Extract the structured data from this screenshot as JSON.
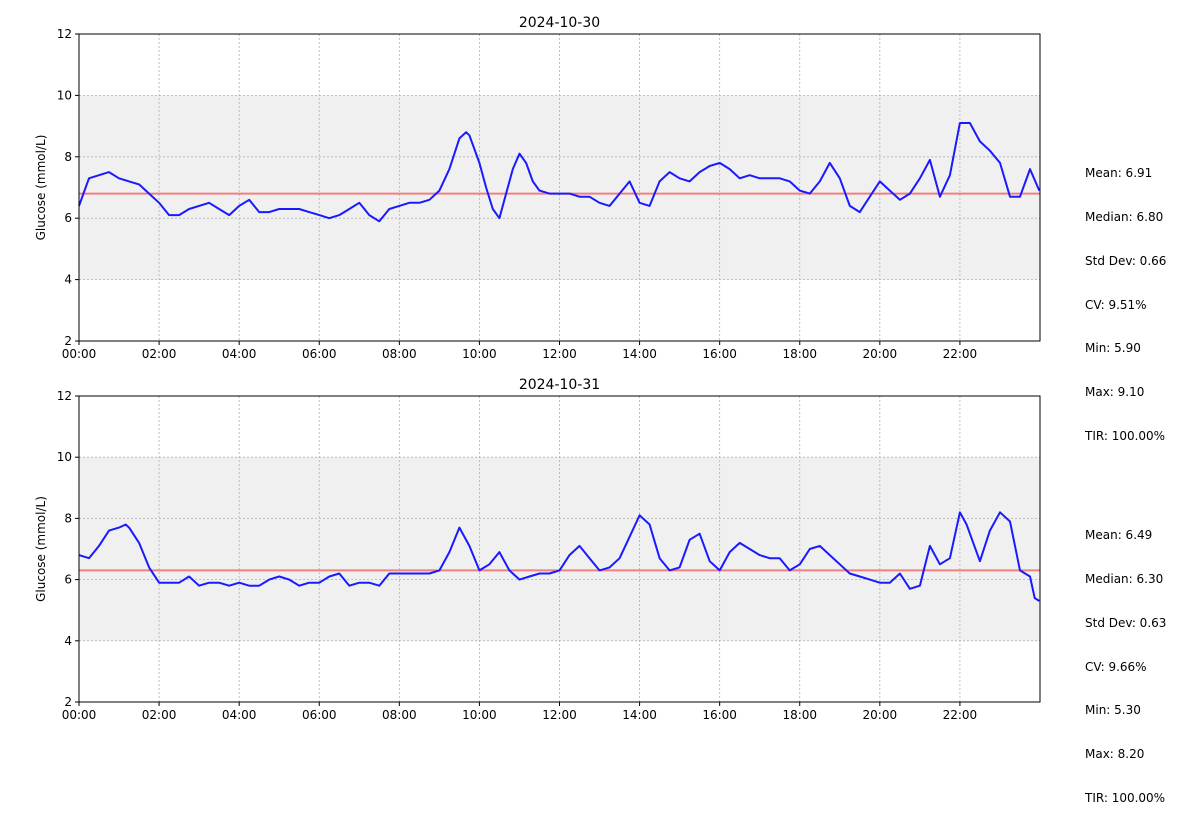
{
  "chart_data": [
    {
      "type": "line",
      "title": "2024-10-30",
      "ylabel": "Glucose (mmol/L)",
      "xlabel": "",
      "xlim": [
        "00:00",
        "24:00"
      ],
      "ylim": [
        2,
        12
      ],
      "yticks": [
        "2",
        "4",
        "6",
        "8",
        "10",
        "12"
      ],
      "xticks": [
        "00:00",
        "02:00",
        "04:00",
        "06:00",
        "08:00",
        "10:00",
        "12:00",
        "14:00",
        "16:00",
        "18:00",
        "20:00",
        "22:00"
      ],
      "grid": true,
      "target_range": [
        4,
        10
      ],
      "reference_line": 6.8,
      "colors": {
        "line": "#1a1aff",
        "reference": "#f08080",
        "band": "#f0f0f0"
      },
      "series": [
        {
          "x": [
            "00:00",
            "00:15",
            "00:30",
            "00:45",
            "01:00",
            "01:15",
            "01:30",
            "01:45",
            "02:00",
            "02:15",
            "02:30",
            "02:45",
            "03:00",
            "03:15",
            "03:30",
            "03:45",
            "04:00",
            "04:15",
            "04:30",
            "04:45",
            "05:00",
            "05:15",
            "05:30",
            "05:45",
            "06:00",
            "06:15",
            "06:30",
            "06:45",
            "07:00",
            "07:15",
            "07:30",
            "07:45",
            "08:00",
            "08:15",
            "08:30",
            "08:45",
            "09:00",
            "09:15",
            "09:30",
            "09:40",
            "09:45",
            "10:00",
            "10:10",
            "10:20",
            "10:30",
            "10:40",
            "10:50",
            "11:00",
            "11:10",
            "11:20",
            "11:30",
            "11:45",
            "12:00",
            "12:15",
            "12:30",
            "12:45",
            "13:00",
            "13:15",
            "13:30",
            "13:45",
            "14:00",
            "14:15",
            "14:30",
            "14:45",
            "15:00",
            "15:15",
            "15:30",
            "15:45",
            "16:00",
            "16:15",
            "16:30",
            "16:45",
            "17:00",
            "17:15",
            "17:30",
            "17:45",
            "18:00",
            "18:15",
            "18:30",
            "18:45",
            "19:00",
            "19:15",
            "19:30",
            "19:45",
            "20:00",
            "20:15",
            "20:30",
            "20:45",
            "21:00",
            "21:15",
            "21:30",
            "21:45",
            "22:00",
            "22:15",
            "22:30",
            "22:45",
            "23:00",
            "23:15",
            "23:30",
            "23:45",
            "23:59"
          ],
          "y": [
            6.4,
            7.3,
            7.4,
            7.5,
            7.3,
            7.2,
            7.1,
            6.8,
            6.5,
            6.1,
            6.1,
            6.3,
            6.4,
            6.5,
            6.3,
            6.1,
            6.4,
            6.6,
            6.2,
            6.2,
            6.3,
            6.3,
            6.3,
            6.2,
            6.1,
            6.0,
            6.1,
            6.3,
            6.5,
            6.1,
            5.9,
            6.3,
            6.4,
            6.5,
            6.5,
            6.6,
            6.9,
            7.6,
            8.6,
            8.8,
            8.7,
            7.8,
            7.0,
            6.3,
            6.0,
            6.8,
            7.6,
            8.1,
            7.8,
            7.2,
            6.9,
            6.8,
            6.8,
            6.8,
            6.7,
            6.7,
            6.5,
            6.4,
            6.8,
            7.2,
            6.5,
            6.4,
            7.2,
            7.5,
            7.3,
            7.2,
            7.5,
            7.7,
            7.8,
            7.6,
            7.3,
            7.4,
            7.3,
            7.3,
            7.3,
            7.2,
            6.9,
            6.8,
            7.2,
            7.8,
            7.3,
            6.4,
            6.2,
            6.7,
            7.2,
            6.9,
            6.6,
            6.8,
            7.3,
            7.9,
            6.7,
            7.4,
            9.1,
            9.1,
            8.5,
            8.2,
            7.8,
            6.7,
            6.7,
            7.6,
            6.9
          ]
        }
      ],
      "stats": [
        "Mean: 6.91",
        "Median: 6.80",
        "Std Dev: 0.66",
        "CV: 9.51%",
        "Min: 5.90",
        "Max: 9.10",
        "TIR: 100.00%"
      ]
    },
    {
      "type": "line",
      "title": "2024-10-31",
      "ylabel": "Glucose (mmol/L)",
      "xlabel": "",
      "xlim": [
        "00:00",
        "24:00"
      ],
      "ylim": [
        2,
        12
      ],
      "yticks": [
        "2",
        "4",
        "6",
        "8",
        "10",
        "12"
      ],
      "xticks": [
        "00:00",
        "02:00",
        "04:00",
        "06:00",
        "08:00",
        "10:00",
        "12:00",
        "14:00",
        "16:00",
        "18:00",
        "20:00",
        "22:00"
      ],
      "grid": true,
      "target_range": [
        4,
        10
      ],
      "reference_line": 6.3,
      "colors": {
        "line": "#1a1aff",
        "reference": "#f08080",
        "band": "#f0f0f0"
      },
      "series": [
        {
          "x": [
            "00:00",
            "00:15",
            "00:30",
            "00:45",
            "01:00",
            "01:10",
            "01:15",
            "01:30",
            "01:45",
            "02:00",
            "02:15",
            "02:30",
            "02:45",
            "03:00",
            "03:15",
            "03:30",
            "03:45",
            "04:00",
            "04:15",
            "04:30",
            "04:45",
            "05:00",
            "05:15",
            "05:30",
            "05:45",
            "06:00",
            "06:15",
            "06:30",
            "06:45",
            "07:00",
            "07:15",
            "07:30",
            "07:45",
            "08:00",
            "08:15",
            "08:30",
            "08:45",
            "09:00",
            "09:15",
            "09:30",
            "09:45",
            "10:00",
            "10:15",
            "10:30",
            "10:45",
            "11:00",
            "11:15",
            "11:30",
            "11:45",
            "12:00",
            "12:15",
            "12:30",
            "12:45",
            "13:00",
            "13:15",
            "13:30",
            "13:45",
            "14:00",
            "14:15",
            "14:30",
            "14:45",
            "15:00",
            "15:15",
            "15:30",
            "15:45",
            "16:00",
            "16:15",
            "16:30",
            "16:45",
            "17:00",
            "17:15",
            "17:30",
            "17:45",
            "18:00",
            "18:15",
            "18:30",
            "18:45",
            "19:00",
            "19:15",
            "19:30",
            "19:45",
            "20:00",
            "20:15",
            "20:30",
            "20:45",
            "21:00",
            "21:15",
            "21:30",
            "21:45",
            "22:00",
            "22:10",
            "22:15",
            "22:30",
            "22:45",
            "23:00",
            "23:15",
            "23:30",
            "23:45",
            "23:52",
            "23:59"
          ],
          "y": [
            6.8,
            6.7,
            7.1,
            7.6,
            7.7,
            7.8,
            7.7,
            7.2,
            6.4,
            5.9,
            5.9,
            5.9,
            6.1,
            5.8,
            5.9,
            5.9,
            5.8,
            5.9,
            5.8,
            5.8,
            6.0,
            6.1,
            6.0,
            5.8,
            5.9,
            5.9,
            6.1,
            6.2,
            5.8,
            5.9,
            5.9,
            5.8,
            6.2,
            6.2,
            6.2,
            6.2,
            6.2,
            6.3,
            6.9,
            7.7,
            7.1,
            6.3,
            6.5,
            6.9,
            6.3,
            6.0,
            6.1,
            6.2,
            6.2,
            6.3,
            6.8,
            7.1,
            6.7,
            6.3,
            6.4,
            6.7,
            7.4,
            8.1,
            7.8,
            6.7,
            6.3,
            6.4,
            7.3,
            7.5,
            6.6,
            6.3,
            6.9,
            7.2,
            7.0,
            6.8,
            6.7,
            6.7,
            6.3,
            6.5,
            7.0,
            7.1,
            6.8,
            6.5,
            6.2,
            6.1,
            6.0,
            5.9,
            5.9,
            6.2,
            5.7,
            5.8,
            7.1,
            6.5,
            6.7,
            8.2,
            7.8,
            7.5,
            6.6,
            7.6,
            8.2,
            7.9,
            6.3,
            6.1,
            5.4,
            5.3
          ]
        }
      ],
      "stats": [
        "Mean: 6.49",
        "Median: 6.30",
        "Std Dev: 0.63",
        "CV: 9.66%",
        "Min: 5.30",
        "Max: 8.20",
        "TIR: 100.00%"
      ]
    }
  ]
}
